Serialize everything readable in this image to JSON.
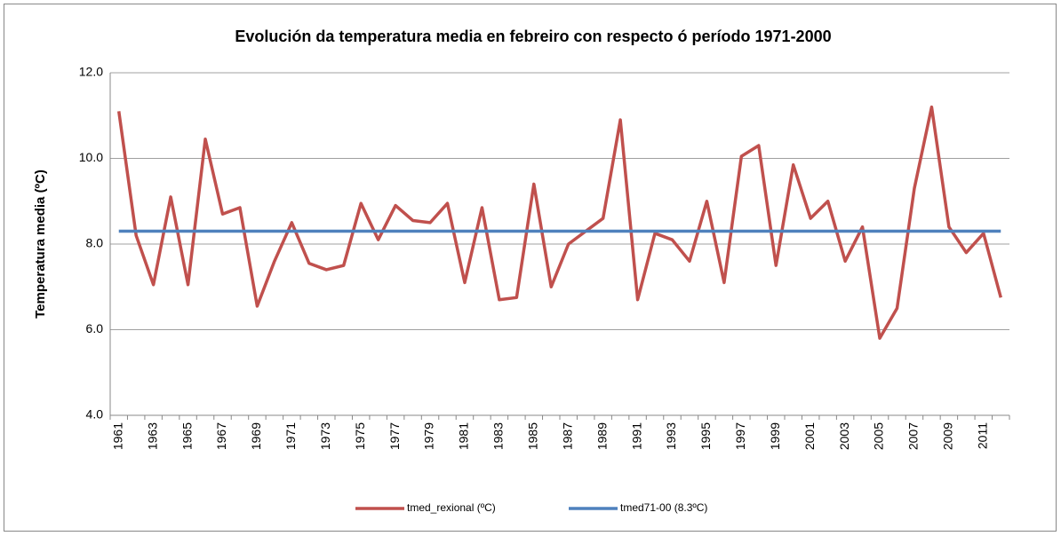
{
  "chart_data": {
    "type": "line",
    "title": "Evolución da temperatura media en febreiro con respecto ó período 1971-2000",
    "y_label": "Temperatura media (ºC)",
    "categories": [
      "1961",
      null,
      "1963",
      null,
      "1965",
      null,
      "1967",
      null,
      "1969",
      null,
      "1971",
      null,
      "1973",
      null,
      "1975",
      null,
      "1977",
      null,
      "1979",
      null,
      "1981",
      null,
      "1983",
      null,
      "1985",
      null,
      "1987",
      null,
      "1989",
      null,
      "1991",
      null,
      "1993",
      null,
      "1995",
      null,
      "1997",
      null,
      "1999",
      null,
      "2001",
      null,
      "2003",
      null,
      "2005",
      null,
      "2007",
      null,
      "2009",
      null,
      "2011",
      null
    ],
    "series": [
      {
        "name": "tmed_rexional (ºC)",
        "color": "#c0504d",
        "values": [
          11.1,
          8.2,
          7.05,
          9.1,
          7.05,
          10.45,
          8.7,
          8.85,
          6.55,
          7.6,
          8.5,
          7.55,
          7.4,
          7.5,
          8.95,
          8.1,
          8.9,
          8.55,
          8.5,
          8.95,
          7.1,
          8.85,
          6.7,
          6.75,
          9.4,
          7.0,
          8.0,
          8.3,
          8.6,
          10.9,
          6.7,
          8.25,
          8.1,
          7.6,
          9.0,
          7.1,
          10.05,
          10.3,
          7.5,
          9.85,
          8.6,
          9.0,
          7.6,
          8.4,
          5.8,
          6.5,
          9.3,
          11.2,
          8.4,
          7.8,
          8.25,
          6.75
        ]
      },
      {
        "name": "tmed71-00 (8.3ºC)",
        "color": "#4f81bd",
        "values": [
          8.3,
          8.3,
          8.3,
          8.3,
          8.3,
          8.3,
          8.3,
          8.3,
          8.3,
          8.3,
          8.3,
          8.3,
          8.3,
          8.3,
          8.3,
          8.3,
          8.3,
          8.3,
          8.3,
          8.3,
          8.3,
          8.3,
          8.3,
          8.3,
          8.3,
          8.3,
          8.3,
          8.3,
          8.3,
          8.3,
          8.3,
          8.3,
          8.3,
          8.3,
          8.3,
          8.3,
          8.3,
          8.3,
          8.3,
          8.3,
          8.3,
          8.3,
          8.3,
          8.3,
          8.3,
          8.3,
          8.3,
          8.3,
          8.3,
          8.3,
          8.3,
          8.3
        ]
      }
    ],
    "ylim": [
      4,
      12
    ],
    "yticks": [
      {
        "value": 4,
        "label": "4.0"
      },
      {
        "value": 6,
        "label": "6.0"
      },
      {
        "value": 8,
        "label": "8.0"
      },
      {
        "value": 10,
        "label": "10.0"
      },
      {
        "value": 12,
        "label": "12.0"
      }
    ],
    "grid": true,
    "legend": "bottom"
  }
}
